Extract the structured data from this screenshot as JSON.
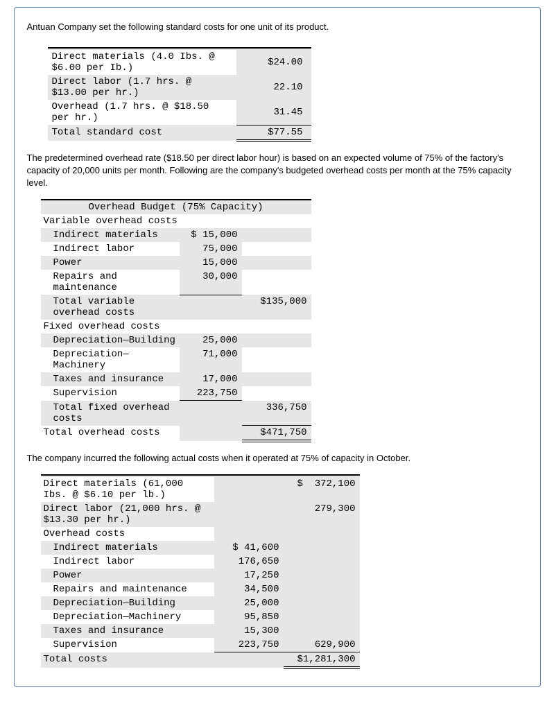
{
  "intro": "Antuan Company set the following standard costs for one unit of its product.",
  "std": {
    "rows": [
      {
        "label": "Direct materials (4.0 Ibs. @ $6.00 per Ib.)",
        "value": "$24.00"
      },
      {
        "label": "Direct labor (1.7 hrs. @ $13.00 per hr.)",
        "value": "22.10"
      },
      {
        "label": "Overhead (1.7 hrs. @ $18.50 per hr.)",
        "value": "31.45"
      }
    ],
    "total_label": "Total standard cost",
    "total_value": "$77.55"
  },
  "para1": "The predetermined overhead rate ($18.50 per direct labor hour) is based on an expected volume of 75% of the factory's capacity of 20,000 units per month. Following are the company's budgeted overhead costs per month at the 75% capacity level.",
  "budget": {
    "title": "Overhead Budget (75% Capacity)",
    "var_header": "Variable overhead costs",
    "var_rows": [
      {
        "label": "Indirect materials",
        "v": "$ 15,000"
      },
      {
        "label": "Indirect labor",
        "v": "75,000"
      },
      {
        "label": "Power",
        "v": "15,000"
      },
      {
        "label": "Repairs and maintenance",
        "v": "30,000"
      }
    ],
    "var_total_label": "Total variable overhead costs",
    "var_total": "$135,000",
    "fix_header": "Fixed overhead costs",
    "fix_rows": [
      {
        "label": "Depreciation—Building",
        "v": "25,000"
      },
      {
        "label": "Depreciation—Machinery",
        "v": "71,000"
      },
      {
        "label": "Taxes and insurance",
        "v": "17,000"
      },
      {
        "label": "Supervision",
        "v": "223,750"
      }
    ],
    "fix_total_label": "Total fixed overhead costs",
    "fix_total": "336,750",
    "grand_label": "Total overhead costs",
    "grand_total": "$471,750"
  },
  "para2": "The company incurred the following actual costs when it operated at 75% of capacity in October.",
  "actual": {
    "dm_label": "Direct materials (61,000 Ibs. @ $6.10 per lb.)",
    "dm_value": "$  372,100",
    "dl_label": "Direct labor (21,000 hrs. @ $13.30 per hr.)",
    "dl_value": "279,300",
    "oh_header": "Overhead costs",
    "oh_rows": [
      {
        "label": "Indirect materials",
        "v": "$ 41,600"
      },
      {
        "label": "Indirect labor",
        "v": "176,650"
      },
      {
        "label": "Power",
        "v": "17,250"
      },
      {
        "label": "Repairs and maintenance",
        "v": "34,500"
      },
      {
        "label": "Depreciation—Building",
        "v": "25,000"
      },
      {
        "label": "Depreciation—Machinery",
        "v": "95,850"
      },
      {
        "label": "Taxes and insurance",
        "v": "15,300"
      },
      {
        "label": "Supervision",
        "v": "223,750"
      }
    ],
    "oh_subtotal": "629,900",
    "total_label": "Total costs",
    "total_value": "$1,281,300"
  }
}
